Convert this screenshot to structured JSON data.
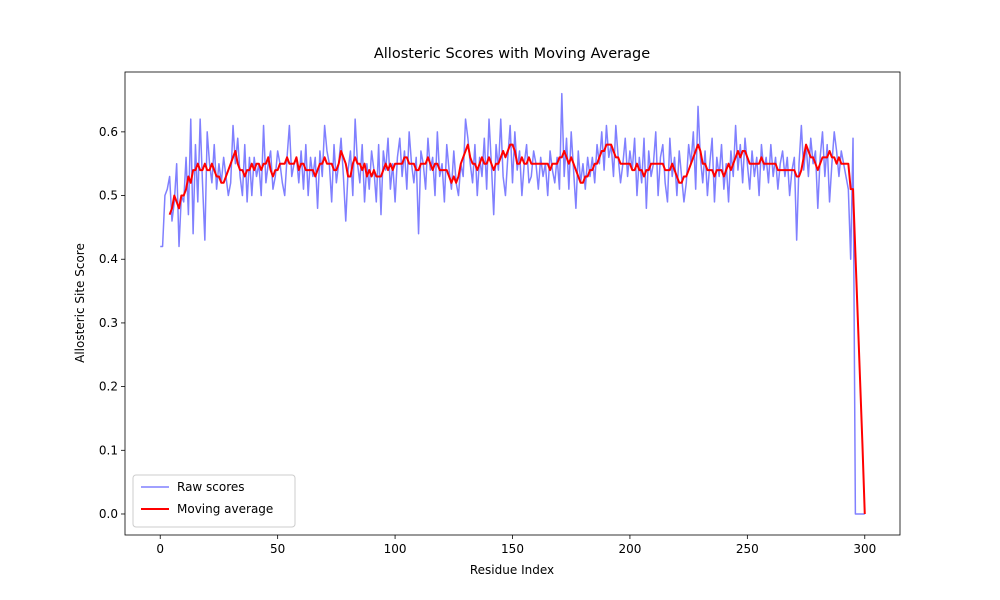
{
  "chart_data": {
    "type": "line",
    "title": "Allosteric Scores with Moving Average",
    "x_label": "Residue Index",
    "y_label": "Allosteric Site Score",
    "xlim": [
      -15,
      315
    ],
    "ylim": [
      -0.033,
      0.694
    ],
    "xticks": [
      0,
      50,
      100,
      150,
      200,
      250,
      300
    ],
    "yticks": [
      {
        "value": 0,
        "label": "0.0"
      },
      0.1,
      0.2,
      0.3,
      0.4,
      0.5,
      0.6
    ],
    "legend": "lower left",
    "grid": false,
    "x": [
      0,
      1,
      2,
      3,
      4,
      5,
      6,
      7,
      8,
      9,
      10,
      11,
      12,
      13,
      14,
      15,
      16,
      17,
      18,
      19,
      20,
      21,
      22,
      23,
      24,
      25,
      26,
      27,
      28,
      29,
      30,
      31,
      32,
      33,
      34,
      35,
      36,
      37,
      38,
      39,
      40,
      41,
      42,
      43,
      44,
      45,
      46,
      47,
      48,
      49,
      50,
      51,
      52,
      53,
      54,
      55,
      56,
      57,
      58,
      59,
      60,
      61,
      62,
      63,
      64,
      65,
      66,
      67,
      68,
      69,
      70,
      71,
      72,
      73,
      74,
      75,
      76,
      77,
      78,
      79,
      80,
      81,
      82,
      83,
      84,
      85,
      86,
      87,
      88,
      89,
      90,
      91,
      92,
      93,
      94,
      95,
      96,
      97,
      98,
      99,
      100,
      101,
      102,
      103,
      104,
      105,
      106,
      107,
      108,
      109,
      110,
      111,
      112,
      113,
      114,
      115,
      116,
      117,
      118,
      119,
      120,
      121,
      122,
      123,
      124,
      125,
      126,
      127,
      128,
      129,
      130,
      131,
      132,
      133,
      134,
      135,
      136,
      137,
      138,
      139,
      140,
      141,
      142,
      143,
      144,
      145,
      146,
      147,
      148,
      149,
      150,
      151,
      152,
      153,
      154,
      155,
      156,
      157,
      158,
      159,
      160,
      161,
      162,
      163,
      164,
      165,
      166,
      167,
      168,
      169,
      170,
      171,
      172,
      173,
      174,
      175,
      176,
      177,
      178,
      179,
      180,
      181,
      182,
      183,
      184,
      185,
      186,
      187,
      188,
      189,
      190,
      191,
      192,
      193,
      194,
      195,
      196,
      197,
      198,
      199,
      200,
      201,
      202,
      203,
      204,
      205,
      206,
      207,
      208,
      209,
      210,
      211,
      212,
      213,
      214,
      215,
      216,
      217,
      218,
      219,
      220,
      221,
      222,
      223,
      224,
      225,
      226,
      227,
      228,
      229,
      230,
      231,
      232,
      233,
      234,
      235,
      236,
      237,
      238,
      239,
      240,
      241,
      242,
      243,
      244,
      245,
      246,
      247,
      248,
      249,
      250,
      251,
      252,
      253,
      254,
      255,
      256,
      257,
      258,
      259,
      260,
      261,
      262,
      263,
      264,
      265,
      266,
      267,
      268,
      269,
      270,
      271,
      272,
      273,
      274,
      275,
      276,
      277,
      278,
      279,
      280,
      281,
      282,
      283,
      284,
      285,
      286,
      287,
      288,
      289,
      290,
      291,
      292,
      293,
      294,
      295,
      296,
      297,
      298,
      299,
      300
    ],
    "series": [
      {
        "name": "Raw scores",
        "color": "#8080ff",
        "width": 1.5,
        "values": [
          0.42,
          0.42,
          0.5,
          0.51,
          0.53,
          0.46,
          0.49,
          0.55,
          0.42,
          0.5,
          0.49,
          0.56,
          0.47,
          0.62,
          0.44,
          0.58,
          0.49,
          0.62,
          0.52,
          0.43,
          0.6,
          0.55,
          0.52,
          0.58,
          0.51,
          0.55,
          0.52,
          0.56,
          0.53,
          0.5,
          0.52,
          0.61,
          0.55,
          0.59,
          0.53,
          0.5,
          0.58,
          0.49,
          0.56,
          0.5,
          0.56,
          0.53,
          0.55,
          0.5,
          0.61,
          0.52,
          0.55,
          0.57,
          0.51,
          0.53,
          0.57,
          0.55,
          0.52,
          0.5,
          0.56,
          0.61,
          0.53,
          0.55,
          0.56,
          0.52,
          0.57,
          0.51,
          0.58,
          0.5,
          0.56,
          0.53,
          0.56,
          0.48,
          0.57,
          0.53,
          0.61,
          0.57,
          0.55,
          0.49,
          0.58,
          0.52,
          0.55,
          0.59,
          0.53,
          0.46,
          0.54,
          0.57,
          0.5,
          0.62,
          0.55,
          0.52,
          0.58,
          0.49,
          0.55,
          0.51,
          0.57,
          0.54,
          0.49,
          0.58,
          0.47,
          0.57,
          0.54,
          0.59,
          0.51,
          0.55,
          0.49,
          0.56,
          0.59,
          0.53,
          0.57,
          0.51,
          0.6,
          0.55,
          0.52,
          0.56,
          0.44,
          0.57,
          0.55,
          0.51,
          0.59,
          0.54,
          0.56,
          0.5,
          0.6,
          0.53,
          0.55,
          0.49,
          0.58,
          0.54,
          0.51,
          0.57,
          0.52,
          0.5,
          0.55,
          0.53,
          0.62,
          0.59,
          0.55,
          0.52,
          0.58,
          0.5,
          0.56,
          0.53,
          0.59,
          0.51,
          0.62,
          0.55,
          0.47,
          0.58,
          0.54,
          0.62,
          0.53,
          0.5,
          0.56,
          0.61,
          0.52,
          0.6,
          0.54,
          0.57,
          0.5,
          0.55,
          0.58,
          0.52,
          0.53,
          0.57,
          0.55,
          0.51,
          0.56,
          0.53,
          0.55,
          0.5,
          0.57,
          0.54,
          0.52,
          0.56,
          0.51,
          0.66,
          0.53,
          0.59,
          0.51,
          0.6,
          0.54,
          0.48,
          0.57,
          0.52,
          0.55,
          0.51,
          0.56,
          0.53,
          0.56,
          0.52,
          0.58,
          0.55,
          0.6,
          0.54,
          0.61,
          0.56,
          0.58,
          0.53,
          0.61,
          0.56,
          0.52,
          0.55,
          0.59,
          0.53,
          0.57,
          0.54,
          0.59,
          0.5,
          0.56,
          0.52,
          0.59,
          0.48,
          0.57,
          0.53,
          0.55,
          0.6,
          0.5,
          0.56,
          0.58,
          0.52,
          0.49,
          0.59,
          0.53,
          0.56,
          0.5,
          0.57,
          0.53,
          0.49,
          0.52,
          0.58,
          0.55,
          0.6,
          0.51,
          0.64,
          0.56,
          0.52,
          0.57,
          0.5,
          0.55,
          0.59,
          0.49,
          0.56,
          0.53,
          0.58,
          0.51,
          0.55,
          0.49,
          0.57,
          0.53,
          0.61,
          0.54,
          0.58,
          0.52,
          0.59,
          0.55,
          0.51,
          0.57,
          0.53,
          0.56,
          0.5,
          0.58,
          0.54,
          0.56,
          0.52,
          0.58,
          0.53,
          0.56,
          0.51,
          0.55,
          0.57,
          0.53,
          0.56,
          0.5,
          0.54,
          0.56,
          0.43,
          0.55,
          0.61,
          0.54,
          0.58,
          0.53,
          0.59,
          0.55,
          0.57,
          0.48,
          0.56,
          0.6,
          0.53,
          0.58,
          0.49,
          0.55,
          0.6,
          0.57,
          0.53,
          0.57,
          0.55,
          0.53,
          0.51,
          0.4,
          0.59,
          0,
          0,
          0,
          0,
          0
        ]
      },
      {
        "name": "Moving average",
        "color": "#ff0000",
        "width": 2,
        "values": [
          null,
          null,
          null,
          null,
          0.47,
          0.48,
          0.5,
          0.49,
          0.48,
          0.5,
          0.5,
          0.51,
          0.53,
          0.52,
          0.54,
          0.54,
          0.55,
          0.54,
          0.54,
          0.55,
          0.54,
          0.54,
          0.55,
          0.54,
          0.53,
          0.53,
          0.52,
          0.52,
          0.53,
          0.54,
          0.55,
          0.56,
          0.57,
          0.55,
          0.54,
          0.54,
          0.53,
          0.54,
          0.54,
          0.55,
          0.54,
          0.55,
          0.55,
          0.54,
          0.55,
          0.55,
          0.56,
          0.54,
          0.53,
          0.54,
          0.54,
          0.55,
          0.55,
          0.55,
          0.56,
          0.55,
          0.55,
          0.55,
          0.56,
          0.54,
          0.55,
          0.55,
          0.54,
          0.54,
          0.54,
          0.54,
          0.53,
          0.54,
          0.55,
          0.55,
          0.56,
          0.55,
          0.55,
          0.55,
          0.54,
          0.54,
          0.55,
          0.57,
          0.56,
          0.55,
          0.53,
          0.53,
          0.55,
          0.56,
          0.55,
          0.55,
          0.54,
          0.55,
          0.53,
          0.54,
          0.53,
          0.54,
          0.53,
          0.53,
          0.53,
          0.54,
          0.55,
          0.54,
          0.55,
          0.54,
          0.55,
          0.55,
          0.55,
          0.55,
          0.56,
          0.56,
          0.55,
          0.55,
          0.55,
          0.54,
          0.54,
          0.55,
          0.55,
          0.55,
          0.56,
          0.55,
          0.54,
          0.55,
          0.55,
          0.54,
          0.54,
          0.54,
          0.54,
          0.53,
          0.52,
          0.53,
          0.52,
          0.53,
          0.55,
          0.56,
          0.57,
          0.58,
          0.56,
          0.55,
          0.55,
          0.54,
          0.55,
          0.56,
          0.55,
          0.55,
          0.56,
          0.55,
          0.54,
          0.55,
          0.55,
          0.56,
          0.57,
          0.56,
          0.57,
          0.58,
          0.58,
          0.57,
          0.55,
          0.55,
          0.56,
          0.55,
          0.55,
          0.56,
          0.55,
          0.55,
          0.55,
          0.55,
          0.55,
          0.55,
          0.55,
          0.55,
          0.54,
          0.55,
          0.55,
          0.55,
          0.56,
          0.56,
          0.57,
          0.56,
          0.55,
          0.56,
          0.55,
          0.54,
          0.53,
          0.52,
          0.52,
          0.53,
          0.53,
          0.54,
          0.54,
          0.55,
          0.55,
          0.56,
          0.57,
          0.57,
          0.58,
          0.58,
          0.58,
          0.57,
          0.56,
          0.56,
          0.55,
          0.55,
          0.55,
          0.55,
          0.55,
          0.54,
          0.54,
          0.55,
          0.54,
          0.54,
          0.53,
          0.54,
          0.54,
          0.55,
          0.55,
          0.55,
          0.55,
          0.55,
          0.55,
          0.54,
          0.54,
          0.54,
          0.55,
          0.54,
          0.53,
          0.52,
          0.52,
          0.53,
          0.53,
          0.54,
          0.55,
          0.56,
          0.57,
          0.58,
          0.57,
          0.55,
          0.55,
          0.54,
          0.54,
          0.54,
          0.53,
          0.54,
          0.54,
          0.54,
          0.53,
          0.54,
          0.55,
          0.54,
          0.55,
          0.56,
          0.57,
          0.56,
          0.57,
          0.57,
          0.56,
          0.55,
          0.55,
          0.55,
          0.55,
          0.55,
          0.56,
          0.55,
          0.55,
          0.55,
          0.55,
          0.55,
          0.55,
          0.54,
          0.54,
          0.54,
          0.54,
          0.54,
          0.54,
          0.54,
          0.54,
          0.53,
          0.53,
          0.54,
          0.56,
          0.58,
          0.57,
          0.56,
          0.56,
          0.55,
          0.54,
          0.55,
          0.56,
          0.56,
          0.56,
          0.57,
          0.56,
          0.56,
          0.55,
          0.56,
          0.55,
          0.55,
          0.55,
          0.55,
          0.51,
          0.51,
          0.41,
          0.31,
          0.21,
          0.11,
          0
        ]
      }
    ]
  }
}
